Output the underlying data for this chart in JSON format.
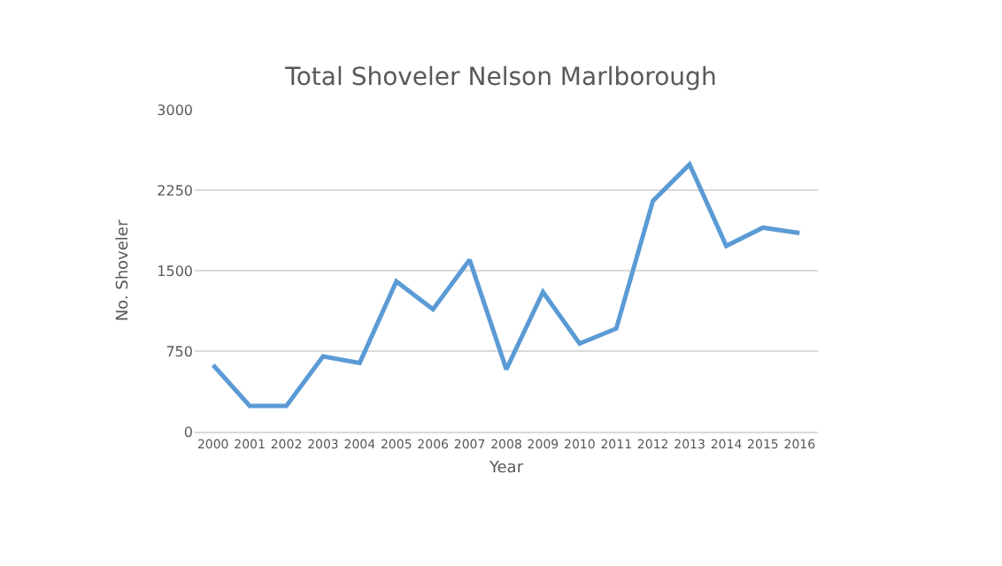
{
  "chart_data": {
    "type": "line",
    "title": "Total Shoveler Nelson Marlborough",
    "xlabel": "Year",
    "ylabel": "No. Shoveler",
    "categories": [
      "2000",
      "2001",
      "2002",
      "2003",
      "2004",
      "2005",
      "2006",
      "2007",
      "2008",
      "2009",
      "2010",
      "2011",
      "2012",
      "2013",
      "2014",
      "2015",
      "2016"
    ],
    "series": [
      {
        "color": "#5b9bd5",
        "values": [
          620,
          240,
          240,
          700,
          640,
          1400,
          1140,
          1600,
          580,
          1300,
          820,
          960,
          2150,
          2490,
          1730,
          1900,
          1850
        ]
      }
    ],
    "ylim": [
      0,
      3000
    ],
    "yticks": [
      0,
      750,
      1500,
      2250,
      3000
    ],
    "grid": "y",
    "legend": false,
    "marker": "none",
    "line_style": "solid"
  }
}
